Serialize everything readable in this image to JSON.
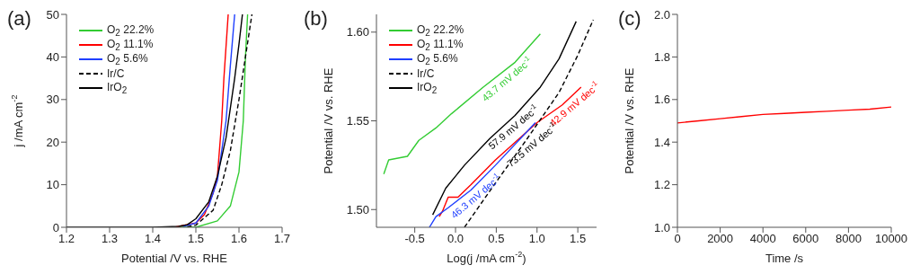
{
  "chart_data": [
    {
      "type": "line",
      "title": "(a)",
      "xlabel": "Potential /V vs. RHE",
      "ylabel": "j /mA cm$^{-2}$",
      "xlim": [
        1.2,
        1.7
      ],
      "xticks": [
        1.2,
        1.3,
        1.4,
        1.5,
        1.6,
        1.7
      ],
      "ylim": [
        0,
        50
      ],
      "yticks": [
        0,
        10,
        20,
        30,
        40,
        50
      ],
      "legend": "top left",
      "series": [
        {
          "name": "O$_{2}$ 22.2%",
          "color": "#33cc33",
          "x": [
            1.42,
            1.5,
            1.55,
            1.58,
            1.6,
            1.61,
            1.615,
            1.62
          ],
          "values": [
            0,
            0,
            1.5,
            5,
            13,
            25,
            40,
            50
          ]
        },
        {
          "name": "O$_{2}$ 11.1%",
          "color": "#ff0000",
          "x": [
            1.45,
            1.5,
            1.52,
            1.54,
            1.55,
            1.56,
            1.565,
            1.575
          ],
          "values": [
            0,
            1,
            3,
            8,
            12,
            25,
            35,
            50
          ]
        },
        {
          "name": "O$_{2}$ 5.6%",
          "color": "#1f3fff",
          "x": [
            1.47,
            1.5,
            1.53,
            1.55,
            1.57,
            1.58,
            1.59
          ],
          "values": [
            0.2,
            1,
            5,
            11,
            25,
            38,
            50
          ]
        },
        {
          "name": "Ir/C",
          "color": "#000000",
          "line_style": "dashed",
          "x": [
            1.48,
            1.5,
            1.54,
            1.56,
            1.58,
            1.6,
            1.615,
            1.63
          ],
          "values": [
            0.1,
            0.5,
            4,
            10,
            18,
            30,
            40,
            50
          ]
        },
        {
          "name": "IrO$_{2}$",
          "color": "#000000",
          "x": [
            1.2,
            1.3,
            1.4,
            1.46,
            1.48,
            1.5,
            1.53,
            1.55,
            1.57,
            1.59,
            1.6,
            1.608
          ],
          "values": [
            0,
            0,
            0,
            0.2,
            0.6,
            2,
            6,
            12,
            21,
            35,
            43,
            50
          ]
        }
      ]
    },
    {
      "type": "line",
      "title": "(b)",
      "xlabel": "Log(j /mA cm$^{-2}$)",
      "ylabel": "Potential /V vs. RHE",
      "xlim": [
        -0.97,
        1.73
      ],
      "xticks": [
        -0.5,
        {
          "value": 0,
          "label": "0.0"
        },
        0.5,
        {
          "value": 1,
          "label": "1.0"
        },
        1.5
      ],
      "ylim": [
        1.49,
        1.61
      ],
      "yticks": [
        {
          "value": 1.5,
          "label": "1.50"
        },
        1.55,
        {
          "value": 1.6,
          "label": "1.60"
        }
      ],
      "legend": "top left",
      "series": [
        {
          "name": "O$_{2}$ 22.2%",
          "color": "#33cc33",
          "x": [
            -0.88,
            -0.82,
            -0.59,
            -0.45,
            -0.24,
            -0.05,
            0.34,
            0.73,
            1.04
          ],
          "values": [
            1.52,
            1.528,
            1.53,
            1.539,
            1.546,
            1.554,
            1.569,
            1.583,
            1.599
          ]
        },
        {
          "name": "O$_{2}$ 11.1%",
          "color": "#ff0000",
          "x": [
            -0.2,
            -0.16,
            -0.09,
            0.03,
            0.19,
            0.49,
            1.0,
            1.31,
            1.54
          ],
          "values": [
            1.496,
            1.499,
            1.507,
            1.507,
            1.514,
            1.528,
            1.549,
            1.559,
            1.569
          ]
        },
        {
          "name": "O$_{2}$ 5.6%",
          "color": "#1f3fff",
          "x": [
            -0.32,
            -0.24,
            -0.09,
            0.19,
            0.49,
            0.98
          ],
          "values": [
            1.49,
            1.496,
            1.501,
            1.511,
            1.525,
            1.549
          ]
        },
        {
          "name": "Ir/C",
          "color": "#000000",
          "line_style": "dashed",
          "x": [
            0.11,
            0.49,
            0.88,
            1.27,
            1.5,
            1.69
          ],
          "values": [
            1.49,
            1.515,
            1.54,
            1.566,
            1.587,
            1.607
          ]
        },
        {
          "name": "IrO$_{2}$",
          "color": "#000000",
          "x": [
            -0.28,
            -0.12,
            0.11,
            0.42,
            0.73,
            1.04,
            1.27,
            1.48
          ],
          "values": [
            1.497,
            1.512,
            1.525,
            1.54,
            1.553,
            1.569,
            1.585,
            1.606
          ]
        }
      ],
      "annotations": [
        {
          "text": "43.7 mV dec$^{-1}$",
          "x": 0.57,
          "y": 1.577
        },
        {
          "text": "42.9 mV dec$^{-1}$",
          "x": 1.4,
          "y": 1.563
        },
        {
          "text": "46.3 mV dec$^{-1}$",
          "x": 0.19,
          "y": 1.511
        },
        {
          "text": "73.5 mV dec$^{-1}$",
          "x": 0.88,
          "y": 1.54
        },
        {
          "text": "57.9 mV dec$^{-1}$",
          "x": 0.65,
          "y": 1.55
        }
      ]
    },
    {
      "type": "line",
      "title": "(c)",
      "xlabel": "Time /s",
      "ylabel": "Potential /V vs. RHE",
      "xlim": [
        0,
        10000
      ],
      "xticks": [
        0,
        2000,
        4000,
        6000,
        8000,
        10000
      ],
      "ylim": [
        1,
        2
      ],
      "yticks": [
        {
          "value": 1,
          "label": "1.0"
        },
        1.2,
        1.4,
        1.6,
        1.8,
        {
          "value": 2,
          "label": "2.0"
        }
      ],
      "series": [
        {
          "color": "#ff0000",
          "x": [
            0,
            1000,
            2000,
            3000,
            4000,
            5000,
            6000,
            7000,
            8000,
            9000,
            10000
          ],
          "values": [
            1.49,
            1.5,
            1.51,
            1.52,
            1.53,
            1.535,
            1.54,
            1.545,
            1.55,
            1.555,
            1.565
          ]
        }
      ]
    }
  ]
}
